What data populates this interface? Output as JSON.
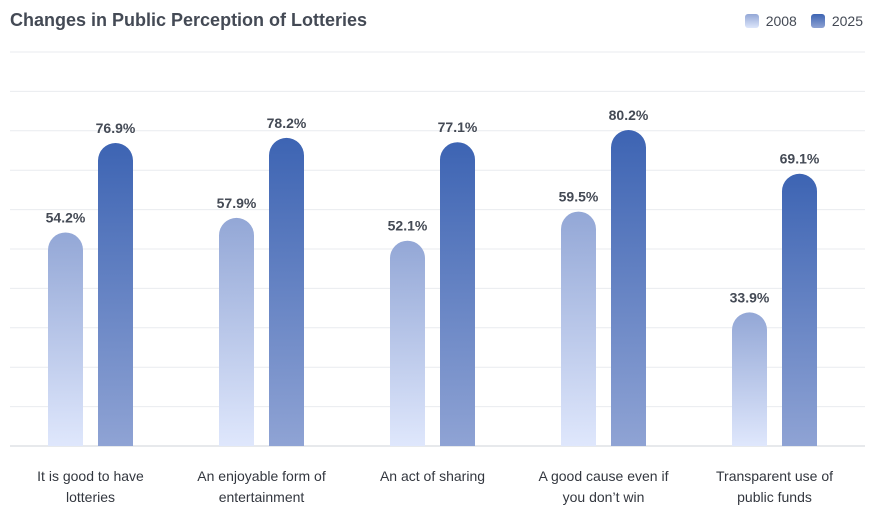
{
  "chart_data": {
    "type": "bar",
    "title": "Changes in Public Perception of Lotteries",
    "categories": [
      [
        "It is good to have",
        "lotteries"
      ],
      [
        "An enjoyable form of",
        "entertainment"
      ],
      [
        "An act of sharing"
      ],
      [
        "A good cause even if",
        "you don’t win"
      ],
      [
        "Transparent use of",
        "public funds"
      ]
    ],
    "series": [
      {
        "name": "2008",
        "values": [
          54.2,
          57.9,
          52.1,
          59.5,
          33.9
        ],
        "color": "#93a7d6"
      },
      {
        "name": "2025",
        "values": [
          76.9,
          78.2,
          77.1,
          80.2,
          69.1
        ],
        "color": "#3d64b3"
      }
    ],
    "value_suffix": "%",
    "ylim": [
      0,
      100
    ],
    "grid": true,
    "legend": "top-right"
  }
}
